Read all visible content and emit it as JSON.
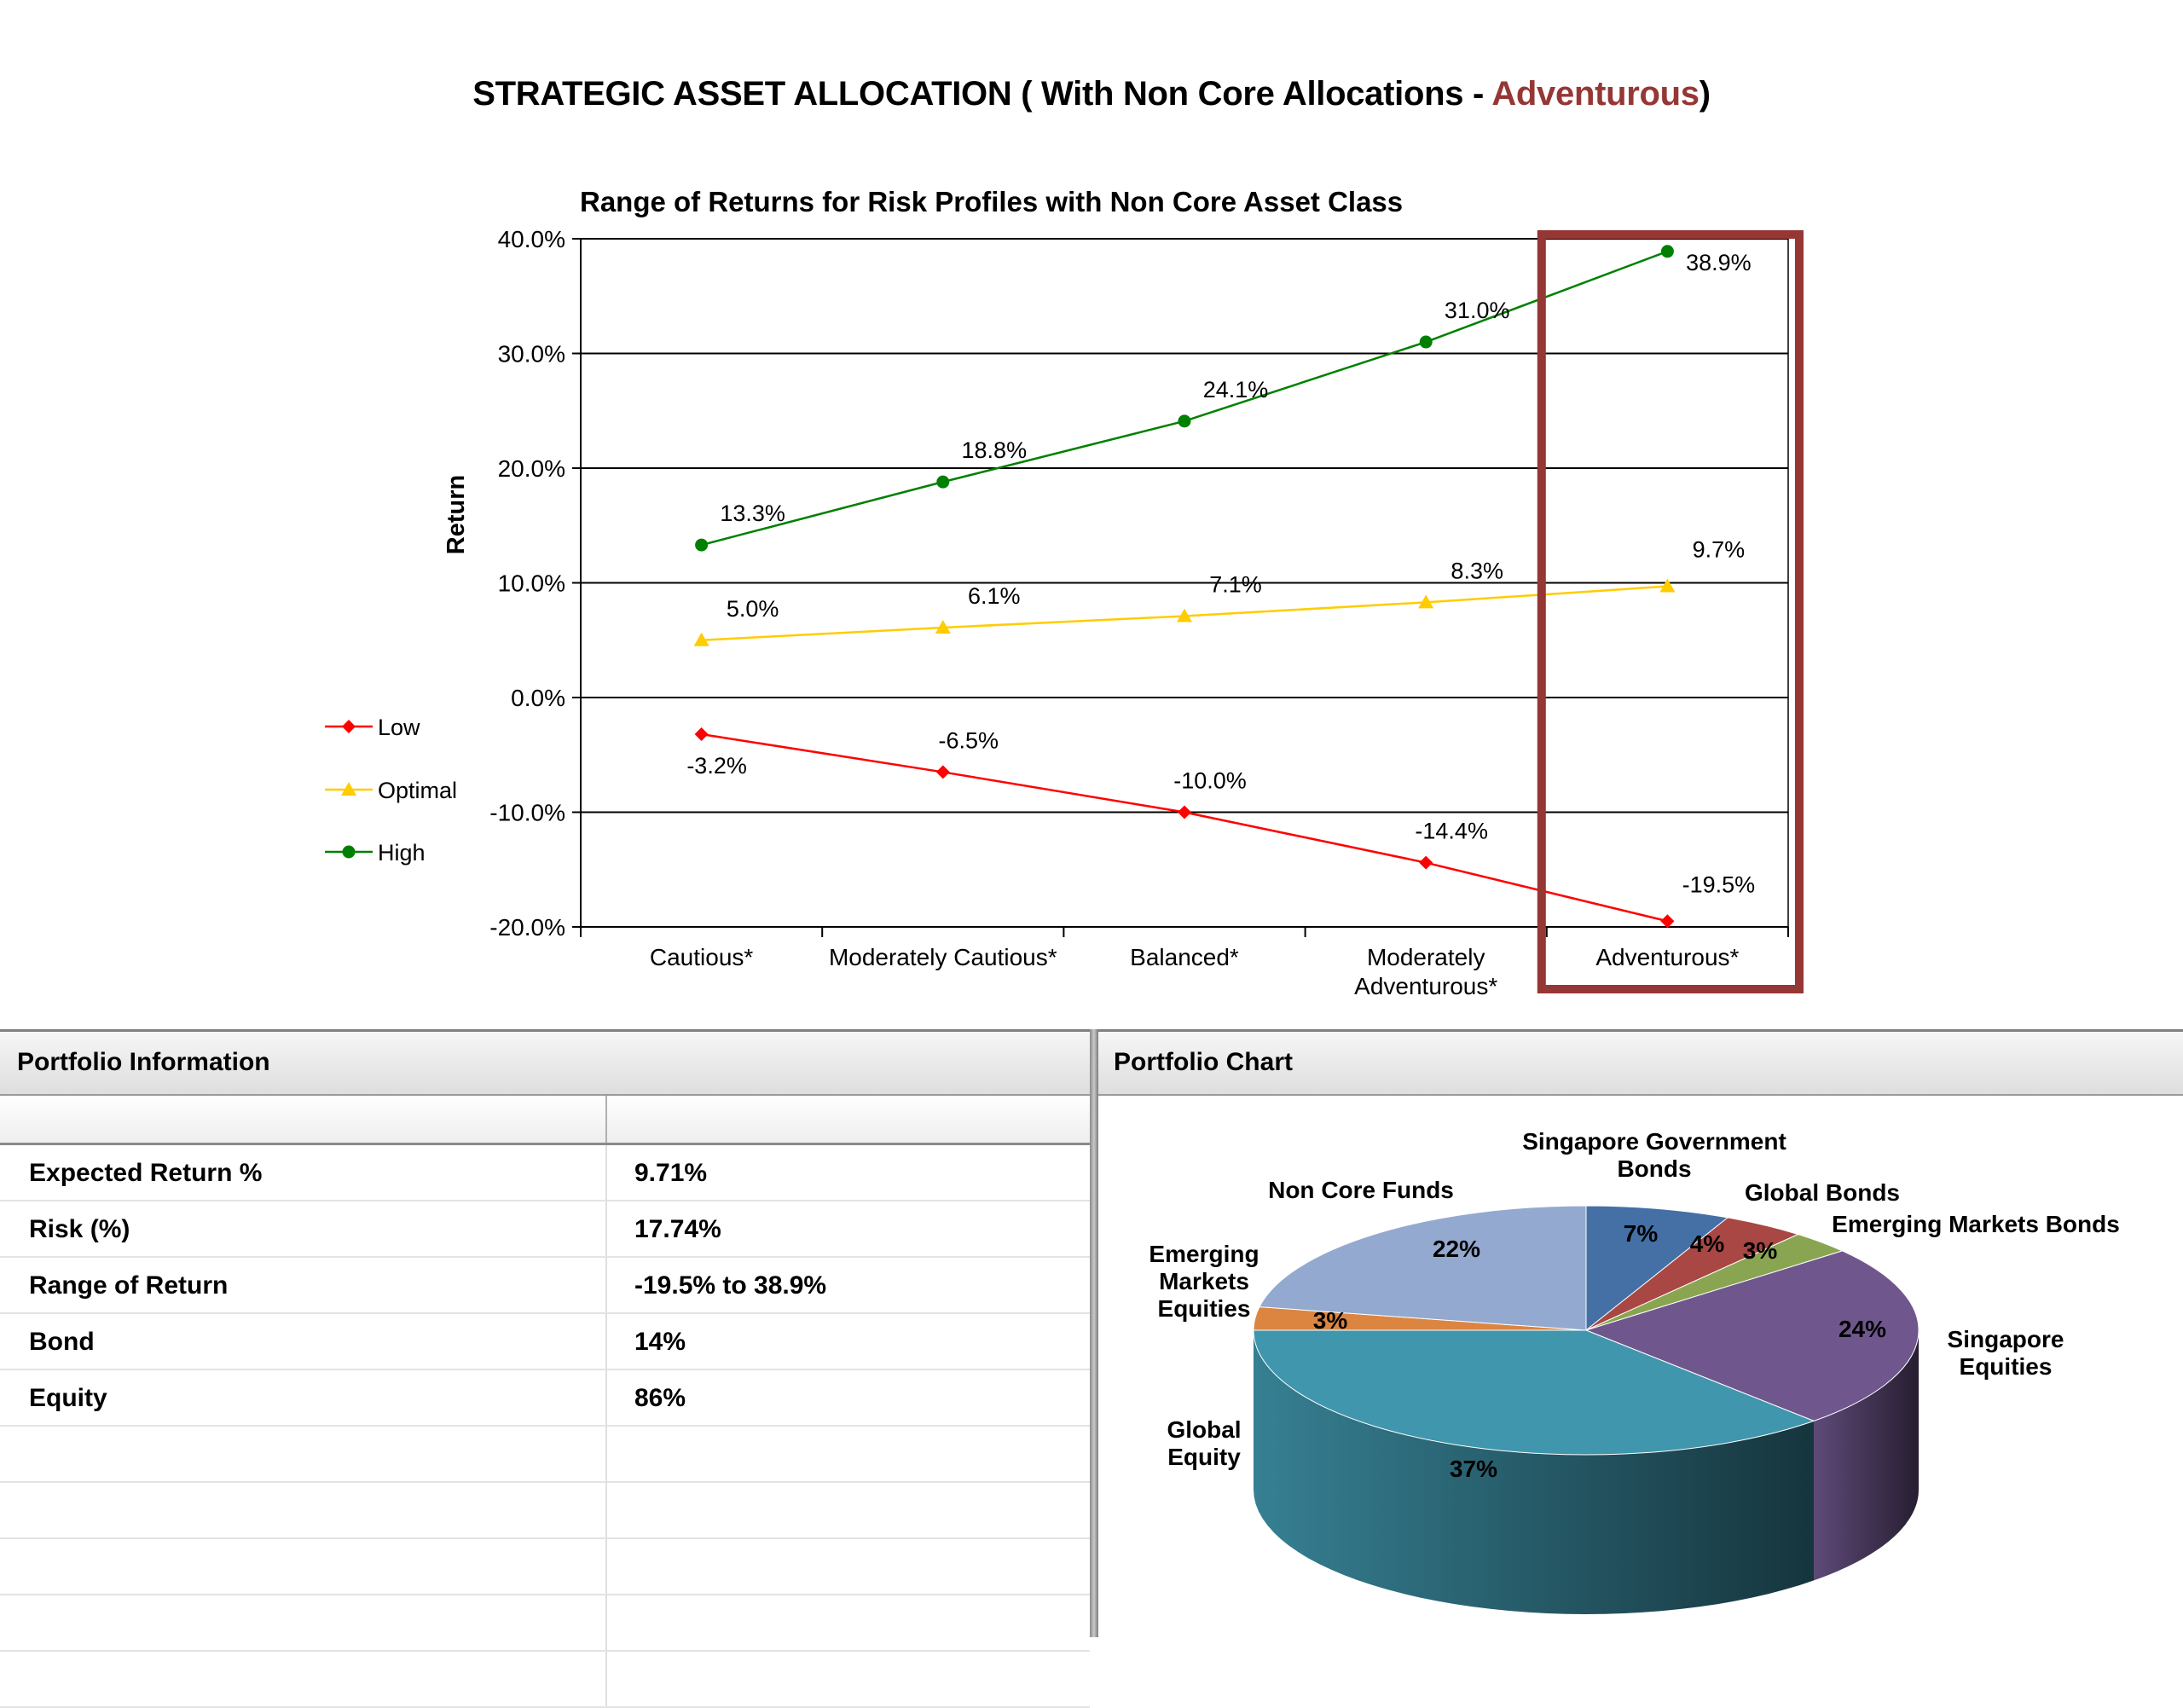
{
  "page_title": {
    "prefix": "STRATEGIC ASSET ALLOCATION ( With Non Core Allocations - ",
    "highlight": "Adventurous",
    "suffix": ")"
  },
  "highlight_color": "#953735",
  "chart_data": [
    {
      "type": "line",
      "title": "Range of Returns for Risk Profiles with Non Core Asset Class",
      "xlabel": "",
      "ylabel": "Return",
      "categories": [
        "Cautious*",
        "Moderately Cautious*",
        "Balanced*",
        "Moderately Adventurous*",
        "Adventurous*"
      ],
      "ylim": [
        -20,
        40
      ],
      "yticks": [
        "40.0%",
        "30.0%",
        "20.0%",
        "10.0%",
        "0.0%",
        "-10.0%",
        "-20.0%"
      ],
      "grid": true,
      "legend_position": "left",
      "highlighted_category": "Adventurous*",
      "series": [
        {
          "name": "Low",
          "color": "#ff0000",
          "marker": "diamond",
          "values": [
            -3.2,
            -6.5,
            -10.0,
            -14.4,
            -19.5
          ],
          "labels": [
            "-3.2%",
            "-6.5%",
            "-10.0%",
            "-14.4%",
            "-19.5%"
          ]
        },
        {
          "name": "Optimal",
          "color": "#ffcc00",
          "marker": "triangle",
          "values": [
            5.0,
            6.1,
            7.1,
            8.3,
            9.7
          ],
          "labels": [
            "5.0%",
            "6.1%",
            "7.1%",
            "8.3%",
            "9.7%"
          ]
        },
        {
          "name": "High",
          "color": "#008000",
          "marker": "circle",
          "values": [
            13.3,
            18.8,
            24.1,
            31.0,
            38.9
          ],
          "labels": [
            "13.3%",
            "18.8%",
            "24.1%",
            "31.0%",
            "38.9%"
          ]
        }
      ]
    },
    {
      "type": "pie",
      "style": "3d",
      "slices": [
        {
          "name": "Singapore Government Bonds",
          "value": 7,
          "label": "7%",
          "color": "#4470a6"
        },
        {
          "name": "Global Bonds",
          "value": 4,
          "label": "4%",
          "color": "#a84744"
        },
        {
          "name": "Emerging Markets Bonds",
          "value": 3,
          "label": "3%",
          "color": "#8aa551"
        },
        {
          "name": "Singapore Equities",
          "value": 24,
          "label": "24%",
          "color": "#6f578d"
        },
        {
          "name": "Global Equity",
          "value": 37,
          "label": "37%",
          "color": "#4096ad"
        },
        {
          "name": "Emerging Markets Equities",
          "value": 3,
          "label": "3%",
          "color": "#db8541"
        },
        {
          "name": "Non Core Funds",
          "value": 22,
          "label": "22%",
          "color": "#93a9cf"
        }
      ]
    }
  ],
  "portfolio_info": {
    "header": "Portfolio Information",
    "rows": [
      {
        "label": "Expected Return %",
        "value": "9.71%"
      },
      {
        "label": "Risk (%)",
        "value": "17.74%"
      },
      {
        "label": "Range of Return",
        "value": "-19.5% to 38.9%"
      },
      {
        "label": "Bond",
        "value": "14%"
      },
      {
        "label": "Equity",
        "value": "86%"
      },
      {
        "label": "",
        "value": ""
      },
      {
        "label": "",
        "value": ""
      },
      {
        "label": "",
        "value": ""
      },
      {
        "label": "",
        "value": ""
      },
      {
        "label": "",
        "value": ""
      }
    ]
  },
  "portfolio_chart": {
    "header": "Portfolio Chart"
  }
}
